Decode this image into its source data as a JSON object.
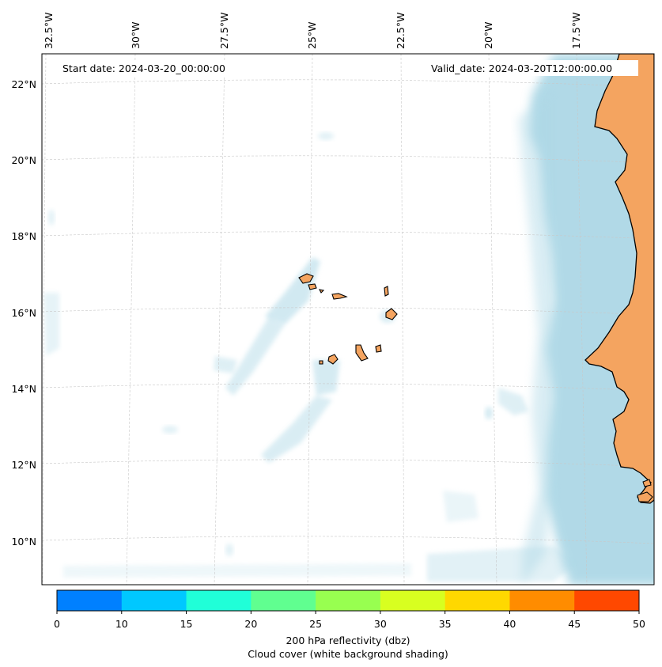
{
  "header": {
    "start_date": "Start date: 2024-03-20_00:00:00",
    "valid_date": "Valid_date: 2024-03-20T12:00:00.00"
  },
  "axes": {
    "lon_ticks": [
      "32.5°W",
      "30°W",
      "27.5°W",
      "25°W",
      "22.5°W",
      "20°W",
      "17.5°W"
    ],
    "lat_ticks": [
      "22°N",
      "20°N",
      "18°N",
      "16°N",
      "14°N",
      "12°N",
      "10°N"
    ]
  },
  "colorbar": {
    "tick_labels": [
      "0",
      "10",
      "15",
      "20",
      "25",
      "30",
      "35",
      "40",
      "45",
      "50"
    ],
    "colors": [
      "#0080ff",
      "#00c8ff",
      "#20ffd8",
      "#60ff90",
      "#98ff50",
      "#d8ff20",
      "#ffd800",
      "#ff8c00",
      "#ff4800"
    ],
    "label_line1": "200 hPa reflectivity (dbz)",
    "label_line2": "Cloud cover (white background shading)"
  },
  "colors": {
    "land": "#f4a460",
    "cloud": "#add8e6",
    "grid": "#c8c8c8"
  }
}
